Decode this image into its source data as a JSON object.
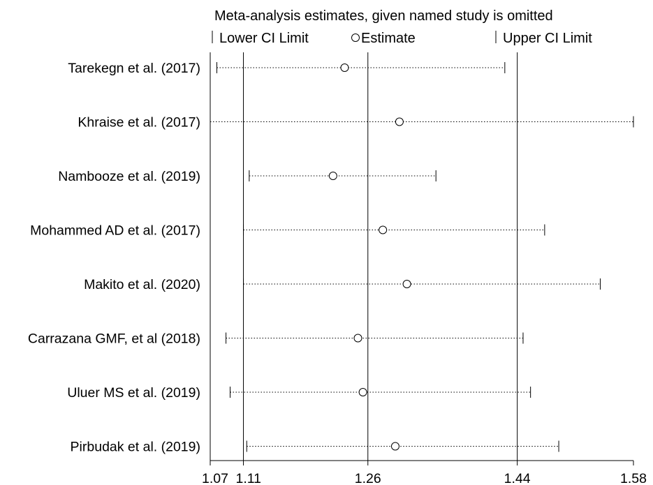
{
  "chart_data": {
    "type": "scatter",
    "title": "Meta-analysis estimates, given named study is omitted",
    "legend": {
      "placement": "top",
      "items": [
        {
          "symbol": "|",
          "label": "Lower CI Limit"
        },
        {
          "symbol": "○",
          "label": "Estimate"
        },
        {
          "symbol": "|",
          "label": "Upper CI Limit"
        }
      ]
    },
    "xlim": [
      1.07,
      1.58
    ],
    "x_ticks": [
      1.07,
      1.11,
      1.26,
      1.44,
      1.58
    ],
    "tick_labels": [
      "1.07",
      "1.11",
      "1.26",
      "1.44",
      "1.58"
    ],
    "reference_lines": [
      1.11,
      1.26,
      1.44
    ],
    "grid": false,
    "studies": [
      {
        "label": "Tarekegn et al. (2017)",
        "lower": 1.078,
        "estimate": 1.232,
        "upper": 1.425
      },
      {
        "label": "Khraise et al. (2017)",
        "lower": 1.07,
        "estimate": 1.298,
        "upper": 1.58
      },
      {
        "label": "Nambooze et al.  (2019)",
        "lower": 1.117,
        "estimate": 1.218,
        "upper": 1.342
      },
      {
        "label": "Mohammed AD et al. (2017)",
        "lower": 1.11,
        "estimate": 1.278,
        "upper": 1.473
      },
      {
        "label": "Makito et al. (2020)",
        "lower": 1.11,
        "estimate": 1.307,
        "upper": 1.54
      },
      {
        "label": "Carrazana GMF, et al (2018)",
        "lower": 1.089,
        "estimate": 1.248,
        "upper": 1.447
      },
      {
        "label": "Uluer MS et al. (2019)",
        "lower": 1.094,
        "estimate": 1.254,
        "upper": 1.456
      },
      {
        "label": "Pirbudak et al. (2019)",
        "lower": 1.114,
        "estimate": 1.293,
        "upper": 1.49
      }
    ]
  }
}
